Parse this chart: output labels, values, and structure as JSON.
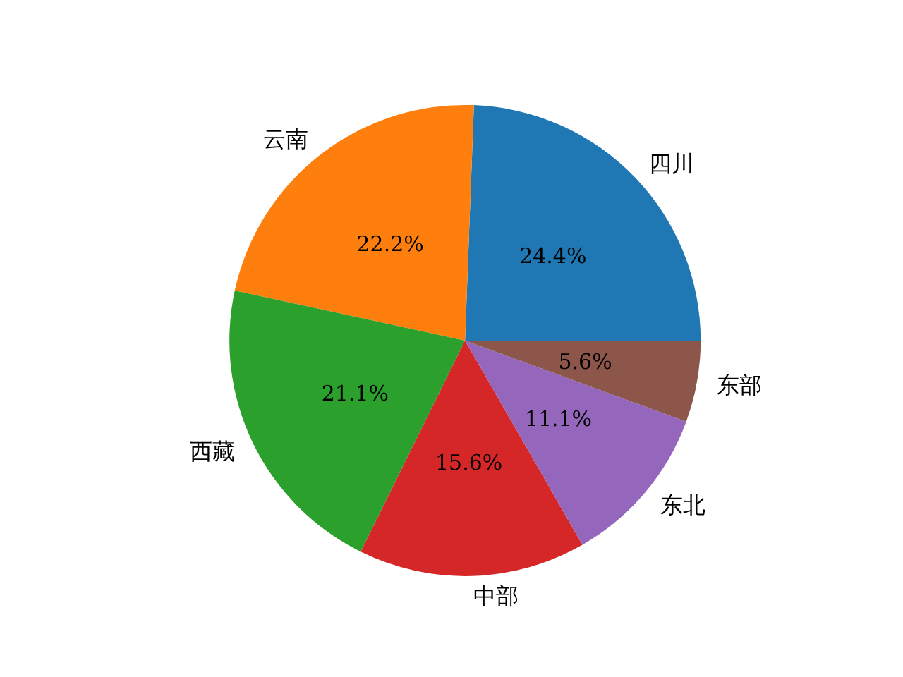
{
  "chart_data": {
    "type": "pie",
    "categories": [
      "四川",
      "云南",
      "西藏",
      "中部",
      "东北",
      "东部"
    ],
    "values": [
      24.4,
      22.2,
      21.1,
      15.6,
      11.1,
      5.6
    ],
    "colors": [
      "#1f77b4",
      "#ff7f0e",
      "#2ca02c",
      "#d62728",
      "#9467bd",
      "#8c564b"
    ],
    "value_labels": [
      "24.4%",
      "22.2%",
      "21.1%",
      "15.6%",
      "11.1%",
      "5.6%"
    ],
    "legend": false
  }
}
